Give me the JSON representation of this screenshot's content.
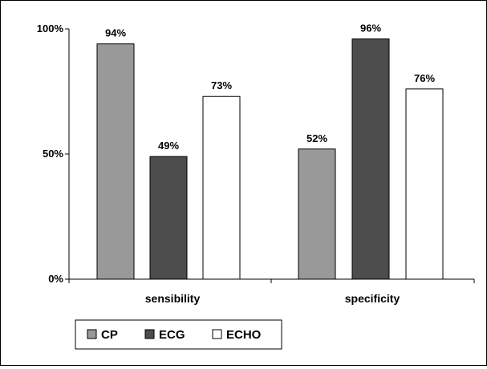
{
  "chart_data": {
    "type": "bar",
    "categories": [
      "sensibility",
      "specificity"
    ],
    "series": [
      {
        "name": "CP",
        "values": [
          94,
          52
        ],
        "color": "#999999"
      },
      {
        "name": "ECG",
        "values": [
          49,
          96
        ],
        "color": "#4d4d4d"
      },
      {
        "name": "ECHO",
        "values": [
          73,
          76
        ],
        "color": "#ffffff"
      }
    ],
    "value_labels": [
      [
        "94%",
        "52%"
      ],
      [
        "49%",
        "96%"
      ],
      [
        "73%",
        "76%"
      ]
    ],
    "y_ticks": [
      "0%",
      "50%",
      "100%"
    ],
    "y_tick_values": [
      0,
      50,
      100
    ],
    "ylim": [
      0,
      100
    ],
    "grid": false,
    "legend_position": "bottom-left",
    "colors": {
      "CP": "#999999",
      "ECG": "#4d4d4d",
      "ECHO": "#ffffff",
      "axis": "#000000"
    }
  }
}
